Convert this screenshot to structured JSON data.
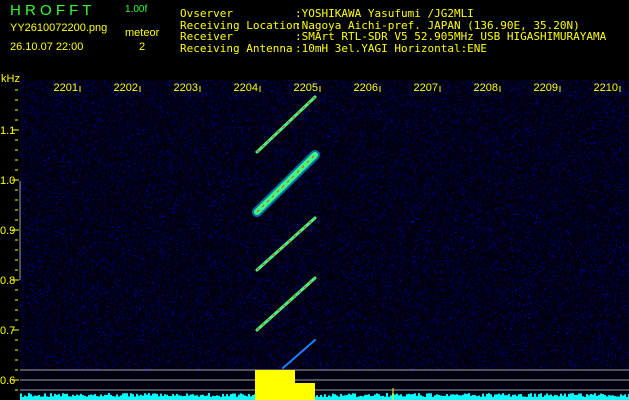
{
  "header": {
    "app_name": "H R O F F T",
    "version": "1.00f",
    "filename": "YY2610072200.png",
    "datetime": "26.10.07 22:00",
    "meteor_label": "meteor",
    "meteor_count": "2",
    "info": [
      {
        "label": "Ovserver",
        "value": ":YOSHIKAWA Yasufumi /JG2MLI"
      },
      {
        "label": "Receiving Location",
        "value": ":Nagoya Aichi-pref. JAPAN (136.90E, 35.20N)"
      },
      {
        "label": "Receiver",
        "value": ":SMArt RTL-SDR V5 52.905MHz USB HIGASHIMURAYAMA"
      },
      {
        "label": "Receiving Antenna",
        "value": ":10mH 3el.YAGI Horizontal:ENE"
      }
    ]
  },
  "colors": {
    "background": "#000000",
    "text": "#ffff00",
    "title": "#33ff33",
    "noise": "#1010a0",
    "level": "#00ffff",
    "alarm": "#ffff00"
  },
  "chart_data": {
    "type": "heatmap",
    "ylabel": "kHz",
    "x_ticks": [
      "2201",
      "2202",
      "2203",
      "2204",
      "2205",
      "2206",
      "2207",
      "2208",
      "2209",
      "2210"
    ],
    "y_ticks": [
      "1.1",
      "1.0",
      "0.9",
      "0.8",
      "0.7",
      "0.6"
    ],
    "ylim": [
      0.57,
      1.2
    ],
    "xlim": [
      "22:00:00",
      "22:10:10"
    ],
    "traces": [
      {
        "start": [
          "22:03:57",
          1.056
        ],
        "end": [
          "22:04:55",
          1.166
        ],
        "intensity": "medium"
      },
      {
        "start": [
          "22:03:57",
          0.936
        ],
        "end": [
          "22:04:55",
          1.05
        ],
        "intensity": "strong"
      },
      {
        "start": [
          "22:03:57",
          0.82
        ],
        "end": [
          "22:04:55",
          0.924
        ],
        "intensity": "medium"
      },
      {
        "start": [
          "22:03:57",
          0.7
        ],
        "end": [
          "22:04:55",
          0.804
        ],
        "intensity": "medium"
      },
      {
        "start": [
          "22:04:23",
          0.624
        ],
        "end": [
          "22:04:55",
          0.68
        ],
        "intensity": "weak"
      }
    ]
  }
}
